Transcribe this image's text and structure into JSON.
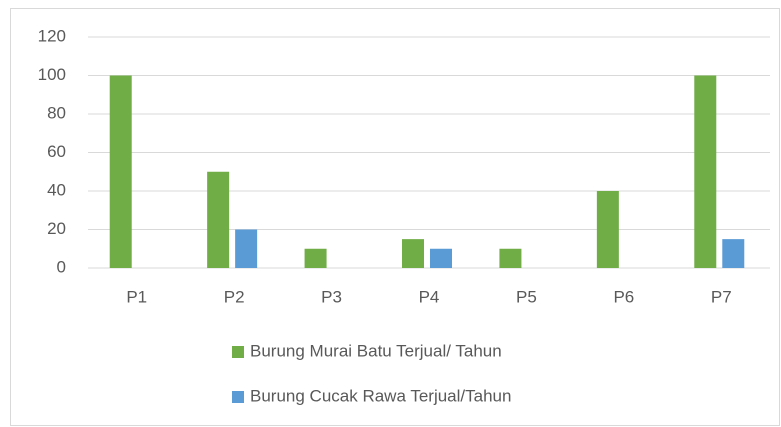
{
  "chart_data": {
    "type": "bar",
    "categories": [
      "P1",
      "P2",
      "P3",
      "P4",
      "P5",
      "P6",
      "P7"
    ],
    "series": [
      {
        "name": "Burung Murai Batu Terjual/ Tahun",
        "color": "#70ad47",
        "values": [
          100,
          50,
          10,
          15,
          10,
          40,
          100
        ]
      },
      {
        "name": "Burung Cucak Rawa Terjual/Tahun",
        "color": "#5b9bd5",
        "values": [
          0,
          20,
          0,
          10,
          0,
          0,
          15
        ]
      }
    ],
    "ylim": [
      0,
      120
    ],
    "yticks": [
      0,
      20,
      40,
      60,
      80,
      100,
      120
    ],
    "grid": true,
    "legend": "bottom"
  }
}
